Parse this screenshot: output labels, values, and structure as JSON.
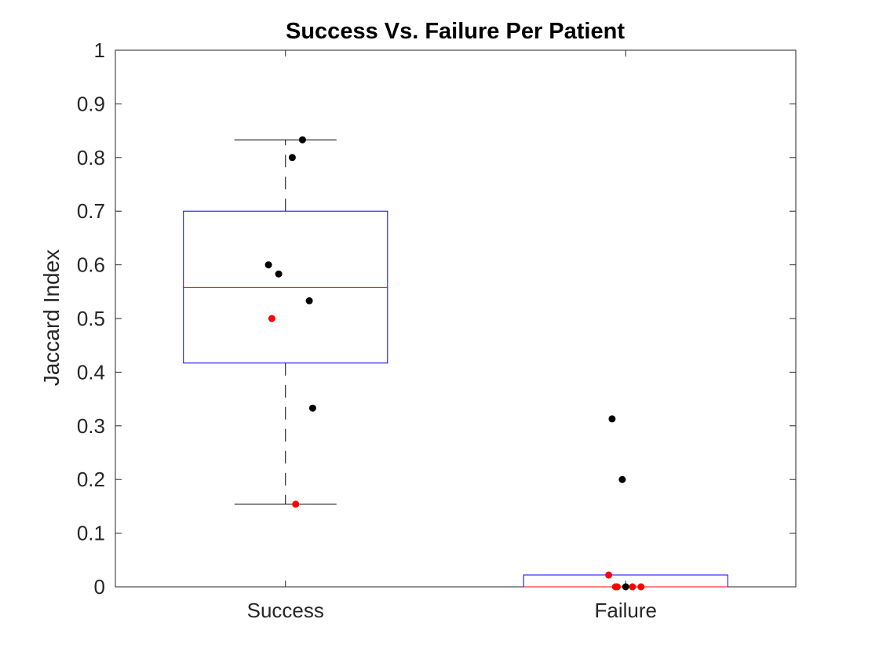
{
  "chart_data": {
    "type": "box",
    "title": "Success Vs. Failure Per Patient",
    "xlabel": "",
    "ylabel": "Jaccard Index",
    "ylim": [
      0,
      1
    ],
    "yticks": [
      0,
      0.1,
      0.2,
      0.3,
      0.4,
      0.5,
      0.6,
      0.7,
      0.8,
      0.9,
      1
    ],
    "ytick_labels": [
      "0",
      "0.1",
      "0.2",
      "0.3",
      "0.4",
      "0.5",
      "0.6",
      "0.7",
      "0.8",
      "0.9",
      "1"
    ],
    "categories": [
      "Success",
      "Failure"
    ],
    "grid": false,
    "colors": {
      "box": "#0000ff",
      "median": "#ff0000",
      "whisker": "#000000",
      "point_default": "#000000",
      "point_highlight": "#ff0000"
    },
    "boxes": [
      {
        "category": "Success",
        "q1": 0.417,
        "median": 0.558,
        "q3": 0.7,
        "whisker_low": 0.154,
        "whisker_high": 0.833
      },
      {
        "category": "Failure",
        "q1": 0.0,
        "median": 0.0,
        "q3": 0.022,
        "whisker_low": 0.0,
        "whisker_high": 0.022
      }
    ],
    "points": [
      {
        "category": "Success",
        "y": 0.833,
        "jitter": 0.05,
        "highlight": false
      },
      {
        "category": "Success",
        "y": 0.8,
        "jitter": 0.02,
        "highlight": false
      },
      {
        "category": "Success",
        "y": 0.6,
        "jitter": -0.05,
        "highlight": false
      },
      {
        "category": "Success",
        "y": 0.583,
        "jitter": -0.02,
        "highlight": false
      },
      {
        "category": "Success",
        "y": 0.533,
        "jitter": 0.07,
        "highlight": false
      },
      {
        "category": "Success",
        "y": 0.5,
        "jitter": -0.04,
        "highlight": true
      },
      {
        "category": "Success",
        "y": 0.333,
        "jitter": 0.08,
        "highlight": false
      },
      {
        "category": "Success",
        "y": 0.154,
        "jitter": 0.03,
        "highlight": true
      },
      {
        "category": "Failure",
        "y": 0.313,
        "jitter": -0.04,
        "highlight": false
      },
      {
        "category": "Failure",
        "y": 0.2,
        "jitter": -0.01,
        "highlight": false
      },
      {
        "category": "Failure",
        "y": 0.022,
        "jitter": -0.05,
        "highlight": true
      },
      {
        "category": "Failure",
        "y": 0.0,
        "jitter": -0.03,
        "highlight": true
      },
      {
        "category": "Failure",
        "y": 0.0,
        "jitter": -0.025,
        "highlight": true
      },
      {
        "category": "Failure",
        "y": 0.0,
        "jitter": 0.0,
        "highlight": false
      },
      {
        "category": "Failure",
        "y": 0.0,
        "jitter": 0.02,
        "highlight": true
      },
      {
        "category": "Failure",
        "y": 0.0,
        "jitter": 0.045,
        "highlight": true
      }
    ]
  }
}
